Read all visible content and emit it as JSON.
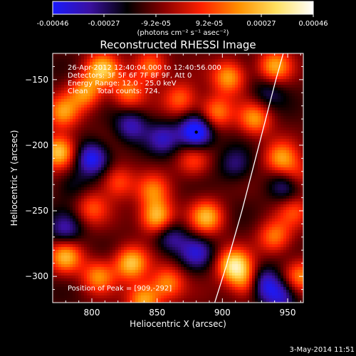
{
  "colorbar": {
    "ticks": [
      "-0.00046",
      "-0.00027",
      "-9.2e-05",
      "9.2e-05",
      "0.00027",
      "0.00046"
    ],
    "units_label": "(photons cm⁻² s⁻¹ asec⁻²)",
    "range": [
      -0.00046,
      0.00046
    ],
    "colormap": [
      "#1a1aff",
      "#3a10a0",
      "#000000",
      "#8a0000",
      "#ff2000",
      "#ff9000",
      "#ffe060",
      "#ffffff"
    ]
  },
  "chart_data": {
    "type": "heatmap",
    "title": "Reconstructed RHESSI Image",
    "xlabel": "Heliocentric X (arcsec)",
    "ylabel": "Heliocentric Y (arcsec)",
    "xlim": [
      770,
      962
    ],
    "ylim": [
      -320,
      -130
    ],
    "x_ticks": [
      800,
      850,
      900,
      950
    ],
    "y_ticks": [
      -150,
      -200,
      -250,
      -300
    ],
    "info_lines": [
      "26-Apr-2012 12:40:04.000 to 12:40:56.000",
      "Detectors: 3F 5F 6F 7F 8F 9F, Att 0",
      "Energy Range: 12.0 - 25.0 keV",
      "Clean    Total counts: 724."
    ],
    "peak_label": "Position of Peak = [909,-292]",
    "peak": [
      909,
      -292
    ],
    "limb_points": [
      [
        891,
        -330
      ],
      [
        903,
        -292
      ],
      [
        915,
        -250
      ],
      [
        928,
        -200
      ],
      [
        941,
        -150
      ],
      [
        950,
        -118
      ]
    ],
    "sources": [
      {
        "x": 808,
        "y": -142,
        "v": 0.00038
      },
      {
        "x": 778,
        "y": -175,
        "v": 0.0003
      },
      {
        "x": 775,
        "y": -205,
        "v": 0.00044
      },
      {
        "x": 795,
        "y": -160,
        "v": 0.00032
      },
      {
        "x": 828,
        "y": -160,
        "v": 0.00028
      },
      {
        "x": 845,
        "y": -140,
        "v": 0.0003
      },
      {
        "x": 868,
        "y": -165,
        "v": 0.00026
      },
      {
        "x": 905,
        "y": -148,
        "v": 0.00035
      },
      {
        "x": 895,
        "y": -175,
        "v": 0.0003
      },
      {
        "x": 925,
        "y": -180,
        "v": 0.00032
      },
      {
        "x": 940,
        "y": -140,
        "v": 0.00034
      },
      {
        "x": 945,
        "y": -210,
        "v": 0.00032
      },
      {
        "x": 955,
        "y": -225,
        "v": 0.0003
      },
      {
        "x": 940,
        "y": -270,
        "v": 0.00028
      },
      {
        "x": 850,
        "y": -255,
        "v": 0.00042
      },
      {
        "x": 847,
        "y": -235,
        "v": 0.00026
      },
      {
        "x": 888,
        "y": -255,
        "v": 0.00036
      },
      {
        "x": 878,
        "y": -212,
        "v": 0.00022
      },
      {
        "x": 820,
        "y": -228,
        "v": 0.00024
      },
      {
        "x": 800,
        "y": -248,
        "v": 0.00022
      },
      {
        "x": 780,
        "y": -285,
        "v": 0.00036
      },
      {
        "x": 830,
        "y": -290,
        "v": 0.0004
      },
      {
        "x": 805,
        "y": -300,
        "v": 0.0003
      },
      {
        "x": 858,
        "y": -305,
        "v": 0.0003
      },
      {
        "x": 840,
        "y": -318,
        "v": 0.00036
      },
      {
        "x": 909,
        "y": -292,
        "v": 0.00046
      },
      {
        "x": 920,
        "y": -305,
        "v": 0.00034
      },
      {
        "x": 960,
        "y": -300,
        "v": 0.0003
      },
      {
        "x": 955,
        "y": -250,
        "v": 0.0002
      },
      {
        "x": 785,
        "y": -230,
        "v": -0.00012
      },
      {
        "x": 880,
        "y": -190,
        "v": -0.00046
      },
      {
        "x": 800,
        "y": -210,
        "v": -0.00034
      },
      {
        "x": 830,
        "y": -185,
        "v": -0.00024
      },
      {
        "x": 855,
        "y": -195,
        "v": -0.00022
      },
      {
        "x": 950,
        "y": -230,
        "v": -0.00032
      },
      {
        "x": 930,
        "y": -305,
        "v": -0.00036
      },
      {
        "x": 880,
        "y": -282,
        "v": -0.00024
      },
      {
        "x": 860,
        "y": -270,
        "v": -0.00022
      },
      {
        "x": 945,
        "y": -315,
        "v": -0.00028
      },
      {
        "x": 910,
        "y": -215,
        "v": -0.00018
      },
      {
        "x": 935,
        "y": -160,
        "v": -0.00016
      },
      {
        "x": 780,
        "y": -265,
        "v": -0.00022
      }
    ]
  },
  "footer": {
    "timestamp": "3-May-2014 11:51"
  }
}
